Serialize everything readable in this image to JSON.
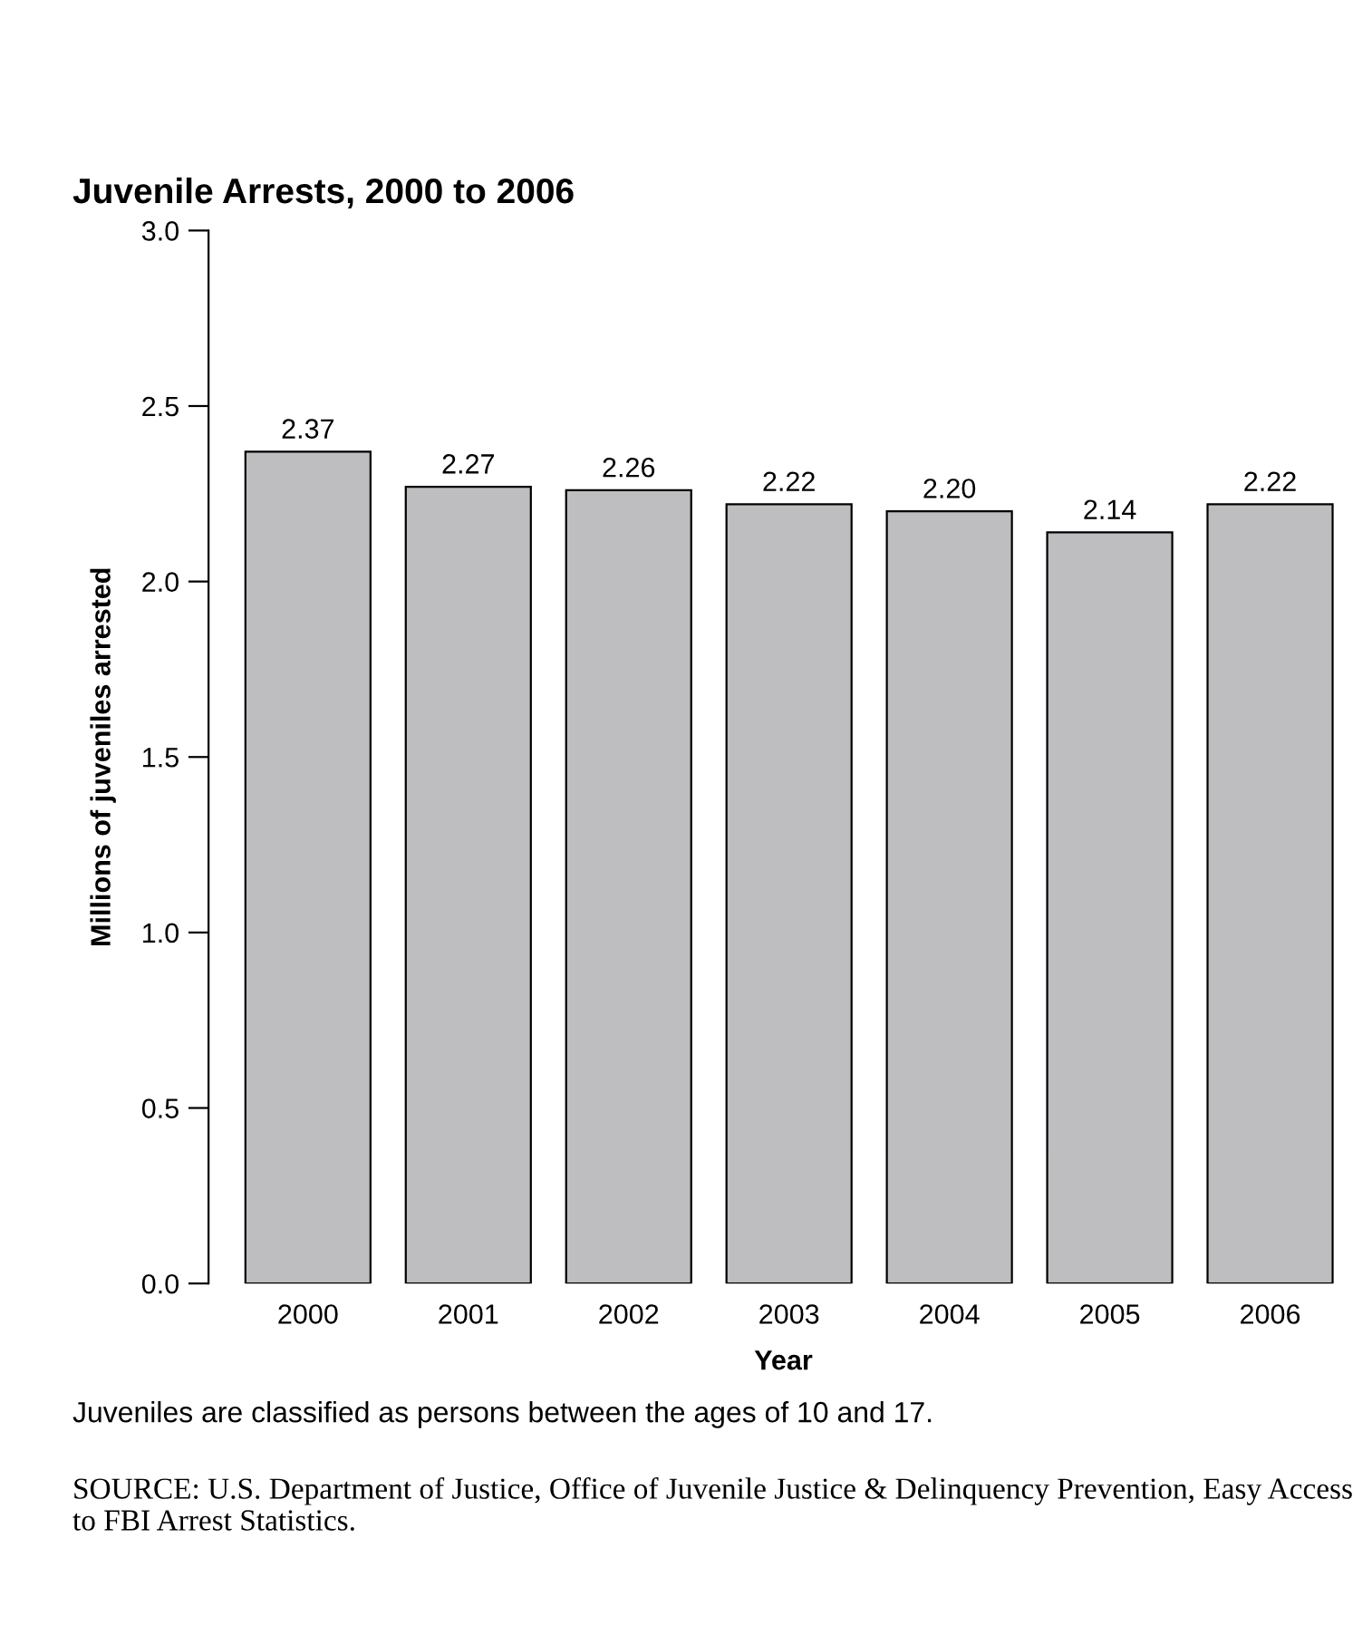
{
  "chart_data": {
    "type": "bar",
    "title": "Juvenile Arrests, 2000 to 2006",
    "xlabel": "Year",
    "ylabel": "Millions of juveniles arrested",
    "categories": [
      "2000",
      "2001",
      "2002",
      "2003",
      "2004",
      "2005",
      "2006"
    ],
    "values": [
      2.37,
      2.27,
      2.26,
      2.22,
      2.2,
      2.14,
      2.22
    ],
    "value_labels": [
      "2.37",
      "2.27",
      "2.26",
      "2.22",
      "2.20",
      "2.14",
      "2.22"
    ],
    "color": "#bebec0",
    "ylim": [
      0,
      3.0
    ],
    "yticks": [
      {
        "value": 0,
        "label": "0.0"
      },
      {
        "value": 0.5,
        "label": "0.5"
      },
      {
        "value": 1.0,
        "label": "1.0"
      },
      {
        "value": 1.5,
        "label": "1.5"
      },
      {
        "value": 2.0,
        "label": "2.0"
      },
      {
        "value": 2.5,
        "label": "2.5"
      },
      {
        "value": 3.0,
        "label": "3.0"
      }
    ],
    "grid": false,
    "annotations": [
      "Juveniles are classified as persons between the ages of 10 and 17.",
      "SOURCE: U.S. Department of Justice, Office of Juvenile Justice & Delinquency Prevention, Easy Access to FBI Arrest Statistics."
    ]
  }
}
